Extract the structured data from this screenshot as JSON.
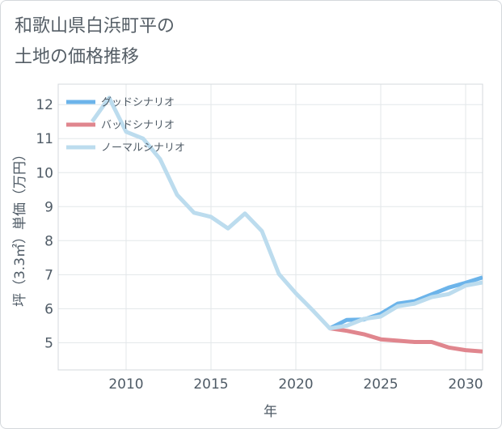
{
  "title_line1": "和歌山県白浜町平の",
  "title_line2": "土地の価格推移",
  "chart_data": {
    "type": "line",
    "title": "和歌山県白浜町平の土地の価格推移",
    "xlabel": "年",
    "ylabel": "坪（3.3㎡）単価（万円）",
    "xlim": [
      2006,
      2031
    ],
    "ylim": [
      4.2,
      12.6
    ],
    "xticks": [
      2010,
      2015,
      2020,
      2025,
      2030
    ],
    "yticks": [
      5,
      6,
      7,
      8,
      9,
      10,
      11,
      12
    ],
    "grid": true,
    "legend_position": "top-left",
    "series": [
      {
        "name": "グッドシナリオ",
        "color": "#6cb4ea",
        "x": [
          2022,
          2023,
          2024,
          2025,
          2026,
          2027,
          2028,
          2029,
          2030,
          2031
        ],
        "y": [
          5.42,
          5.67,
          5.68,
          5.85,
          6.15,
          6.22,
          6.42,
          6.62,
          6.76,
          6.92
        ]
      },
      {
        "name": "バッドシナリオ",
        "color": "#e0868e",
        "x": [
          2022,
          2023,
          2024,
          2025,
          2026,
          2027,
          2028,
          2029,
          2030,
          2031
        ],
        "y": [
          5.42,
          5.35,
          5.25,
          5.1,
          5.06,
          5.02,
          5.02,
          4.86,
          4.78,
          4.74
        ]
      },
      {
        "name": "ノーマルシナリオ",
        "color": "#bcdcee",
        "x": [
          2008,
          2009,
          2010,
          2011,
          2012,
          2013,
          2014,
          2015,
          2016,
          2017,
          2018,
          2019,
          2020,
          2021,
          2022,
          2023,
          2024,
          2025,
          2026,
          2027,
          2028,
          2029,
          2030,
          2031
        ],
        "y": [
          11.5,
          12.2,
          11.2,
          11.0,
          10.4,
          9.35,
          8.82,
          8.7,
          8.36,
          8.8,
          8.28,
          7.02,
          6.45,
          5.95,
          5.42,
          5.5,
          5.7,
          5.77,
          6.07,
          6.15,
          6.34,
          6.43,
          6.68,
          6.77
        ]
      }
    ]
  }
}
